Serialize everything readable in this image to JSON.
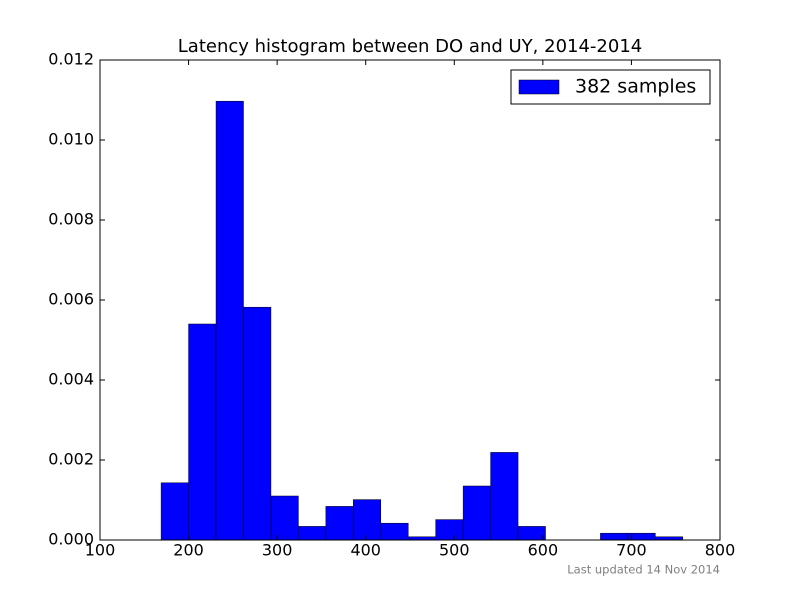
{
  "chart_data": {
    "type": "histogram",
    "title": "Latency histogram between DO and UY, 2014-2014",
    "bins": [
      169,
      200,
      231,
      262,
      293,
      324,
      355,
      386,
      417,
      448,
      479,
      510,
      541,
      572,
      603,
      634,
      665,
      696,
      727,
      758
    ],
    "series": [
      {
        "name": "382 samples",
        "color": "#0000ff",
        "values": [
          0.00143,
          0.0054,
          0.01097,
          0.00582,
          0.0011,
          0.00034,
          0.00084,
          0.00101,
          0.00042,
          8e-05,
          0.00051,
          0.00135,
          0.00219,
          0.00034,
          0,
          0,
          0.00017,
          0.00017,
          8e-05
        ]
      }
    ],
    "xlim": [
      100,
      800
    ],
    "xticks": [
      100,
      200,
      300,
      400,
      500,
      600,
      700,
      800
    ],
    "ylim": [
      0,
      0.012
    ],
    "yticks": [
      {
        "value": 0,
        "label": "0.000"
      },
      {
        "value": 0.002,
        "label": "0.002"
      },
      {
        "value": 0.004,
        "label": "0.004"
      },
      {
        "value": 0.006,
        "label": "0.006"
      },
      {
        "value": 0.008,
        "label": "0.008"
      },
      {
        "value": 0.01,
        "label": "0.010"
      },
      {
        "value": 0.012,
        "label": "0.012"
      }
    ],
    "legend": "upper right",
    "footnote": "Last updated 14 Nov 2014"
  }
}
